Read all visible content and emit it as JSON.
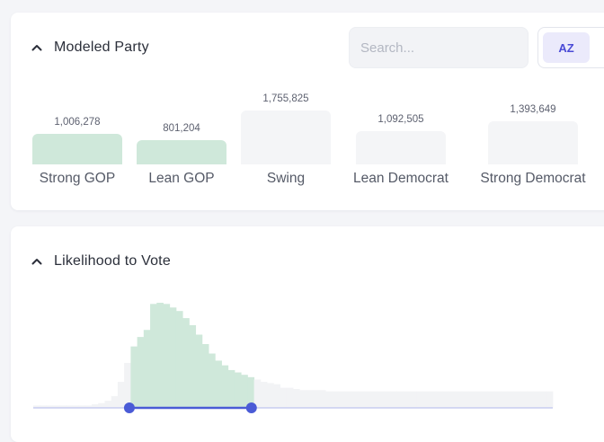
{
  "modeled_party": {
    "title": "Modeled Party",
    "search_placeholder": "Search...",
    "sort_label": "AZ",
    "sort_icon": "sort-az-icon",
    "colors": {
      "selected": "#cfe8da",
      "unselected": "#f4f5f7"
    },
    "bars": [
      {
        "label": "Strong GOP",
        "value_text": "1,006,278",
        "value": 1006278,
        "selected": true
      },
      {
        "label": "Lean GOP",
        "value_text": "801,204",
        "value": 801204,
        "selected": true
      },
      {
        "label": "Swing",
        "value_text": "1,755,825",
        "value": 1755825,
        "selected": false
      },
      {
        "label": "Lean Democrat",
        "value_text": "1,092,505",
        "value": 1092505,
        "selected": false
      },
      {
        "label": "Strong Democrat",
        "value_text": "1,393,649",
        "value": 1393649,
        "selected": false
      }
    ]
  },
  "likelihood": {
    "title": "Likelihood to Vote",
    "colors": {
      "selected": "#cfe8da",
      "unselected": "#f2f3f5",
      "slider": "#4a5bd6",
      "track": "#c8cdf0"
    },
    "range": {
      "min_fraction": 0.185,
      "max_fraction": 0.42
    },
    "histogram": [
      2,
      2,
      2,
      2,
      2,
      2,
      2,
      2,
      2,
      3,
      4,
      6,
      10,
      22,
      38,
      52,
      60,
      66,
      88,
      89,
      88,
      85,
      82,
      76,
      70,
      62,
      54,
      46,
      40,
      36,
      32,
      30,
      28,
      26,
      24,
      22,
      21,
      20,
      17,
      17,
      16,
      15,
      15,
      15,
      15,
      14,
      14,
      14,
      14,
      14,
      14,
      14,
      14,
      14,
      14,
      14,
      14,
      14,
      14,
      14,
      14,
      14,
      14,
      14,
      14,
      14,
      14,
      14,
      14,
      14,
      14,
      14,
      14,
      14,
      14,
      14,
      14,
      14,
      14,
      14
    ]
  }
}
